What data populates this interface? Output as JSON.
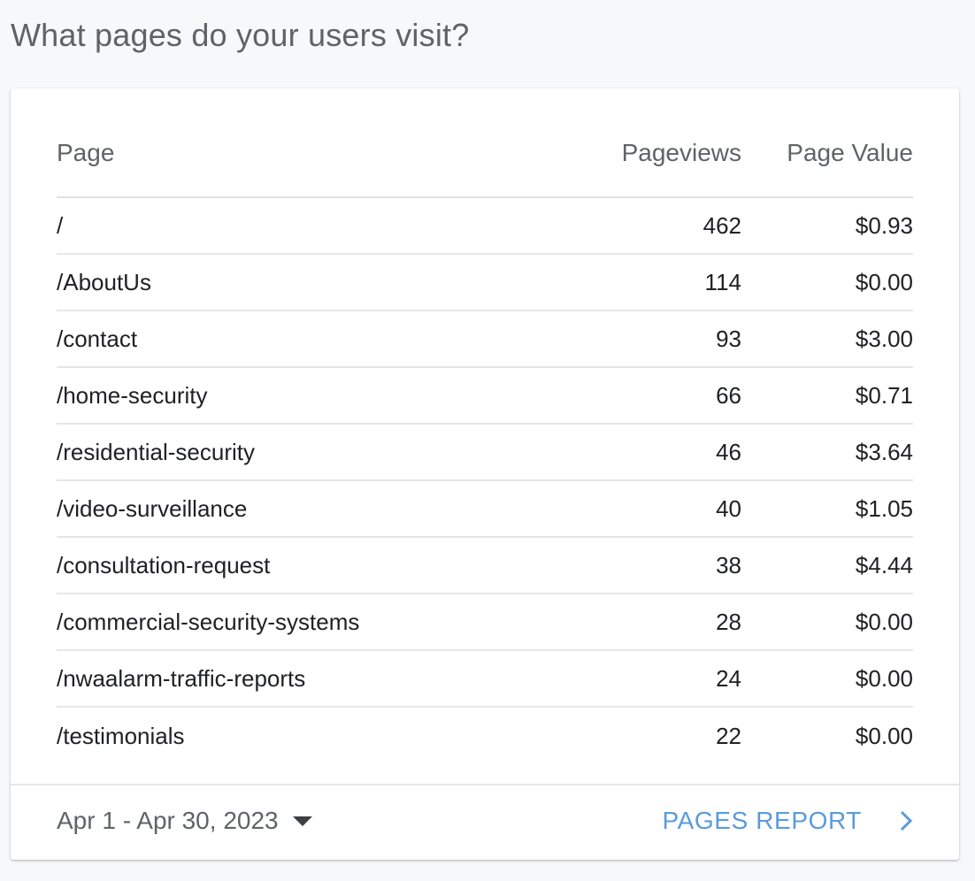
{
  "title": "What pages do your users visit?",
  "table": {
    "columns": {
      "page": "Page",
      "pageviews": "Pageviews",
      "page_value": "Page Value"
    },
    "rows": [
      {
        "page": "/",
        "pageviews": "462",
        "page_value": "$0.93"
      },
      {
        "page": "/AboutUs",
        "pageviews": "114",
        "page_value": "$0.00"
      },
      {
        "page": "/contact",
        "pageviews": "93",
        "page_value": "$3.00"
      },
      {
        "page": "/home-security",
        "pageviews": "66",
        "page_value": "$0.71"
      },
      {
        "page": "/residential-security",
        "pageviews": "46",
        "page_value": "$3.64"
      },
      {
        "page": "/video-surveillance",
        "pageviews": "40",
        "page_value": "$1.05"
      },
      {
        "page": "/consultation-request",
        "pageviews": "38",
        "page_value": "$4.44"
      },
      {
        "page": "/commercial-security-systems",
        "pageviews": "28",
        "page_value": "$0.00"
      },
      {
        "page": "/nwaalarm-traffic-reports",
        "pageviews": "24",
        "page_value": "$0.00"
      },
      {
        "page": "/testimonials",
        "pageviews": "22",
        "page_value": "$0.00"
      }
    ]
  },
  "footer": {
    "date_range": "Apr 1 - Apr 30, 2023",
    "date_icon": "caret-down-icon",
    "report_link": "PAGES REPORT",
    "report_icon": "chevron-right-icon",
    "link_color": "#5a9bdc"
  }
}
